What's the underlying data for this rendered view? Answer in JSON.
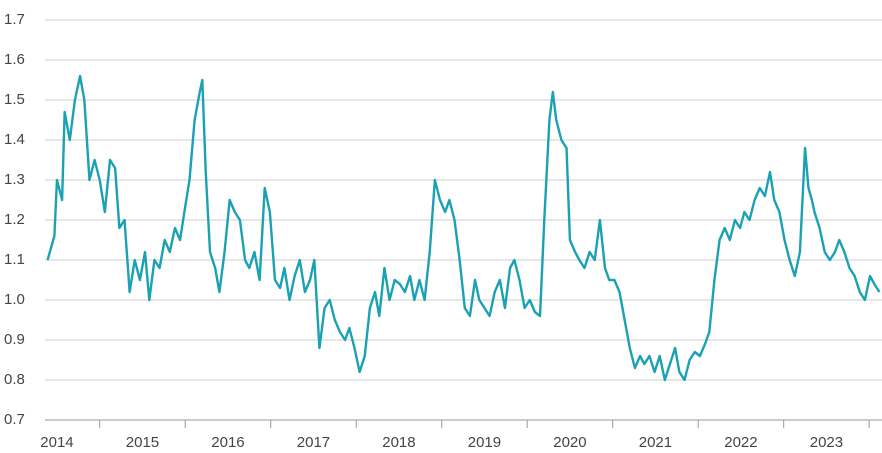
{
  "chart_data": {
    "type": "line",
    "x": [
      2014.39,
      2014.47,
      2014.5,
      2014.56,
      2014.59,
      2014.65,
      2014.71,
      2014.77,
      2014.82,
      2014.88,
      2014.94,
      2015.0,
      2015.06,
      2015.12,
      2015.18,
      2015.23,
      2015.29,
      2015.35,
      2015.41,
      2015.47,
      2015.53,
      2015.58,
      2015.64,
      2015.7,
      2015.76,
      2015.82,
      2015.88,
      2015.94,
      2015.99,
      2016.05,
      2016.11,
      2016.17,
      2016.2,
      2016.24,
      2016.29,
      2016.35,
      2016.4,
      2016.46,
      2016.52,
      2016.58,
      2016.64,
      2016.7,
      2016.75,
      2016.81,
      2016.87,
      2016.93,
      2016.99,
      2017.05,
      2017.11,
      2017.16,
      2017.22,
      2017.28,
      2017.34,
      2017.4,
      2017.46,
      2017.51,
      2017.57,
      2017.63,
      2017.69,
      2017.75,
      2017.81,
      2017.87,
      2017.92,
      2017.98,
      2018.04,
      2018.1,
      2018.16,
      2018.22,
      2018.27,
      2018.33,
      2018.39,
      2018.45,
      2018.51,
      2018.57,
      2018.63,
      2018.68,
      2018.74,
      2018.8,
      2018.86,
      2018.92,
      2018.98,
      2019.04,
      2019.09,
      2019.15,
      2019.21,
      2019.27,
      2019.33,
      2019.39,
      2019.44,
      2019.5,
      2019.56,
      2019.62,
      2019.68,
      2019.74,
      2019.8,
      2019.85,
      2019.91,
      2019.97,
      2020.03,
      2020.09,
      2020.15,
      2020.2,
      2020.26,
      2020.3,
      2020.34,
      2020.4,
      2020.46,
      2020.5,
      2020.56,
      2020.61,
      2020.67,
      2020.73,
      2020.79,
      2020.85,
      2020.91,
      2020.96,
      2021.02,
      2021.08,
      2021.14,
      2021.2,
      2021.26,
      2021.32,
      2021.37,
      2021.43,
      2021.49,
      2021.55,
      2021.61,
      2021.67,
      2021.73,
      2021.78,
      2021.84,
      2021.9,
      2021.96,
      2022.02,
      2022.08,
      2022.13,
      2022.19,
      2022.25,
      2022.31,
      2022.37,
      2022.43,
      2022.49,
      2022.54,
      2022.6,
      2022.66,
      2022.72,
      2022.78,
      2022.84,
      2022.89,
      2022.95,
      2023.01,
      2023.07,
      2023.13,
      2023.19,
      2023.25,
      2023.29,
      2023.33,
      2023.36,
      2023.42,
      2023.48,
      2023.54,
      2023.6,
      2023.65,
      2023.71,
      2023.77,
      2023.83,
      2023.89,
      2023.95,
      2024.01,
      2024.06,
      2024.12
    ],
    "series": [
      {
        "color": "#1ba1b4",
        "values": [
          1.1,
          1.16,
          1.3,
          1.25,
          1.47,
          1.4,
          1.5,
          1.56,
          1.5,
          1.3,
          1.35,
          1.3,
          1.22,
          1.35,
          1.33,
          1.18,
          1.2,
          1.02,
          1.1,
          1.05,
          1.12,
          1.0,
          1.1,
          1.08,
          1.15,
          1.12,
          1.18,
          1.15,
          1.22,
          1.3,
          1.45,
          1.52,
          1.55,
          1.32,
          1.12,
          1.08,
          1.02,
          1.12,
          1.25,
          1.22,
          1.2,
          1.1,
          1.08,
          1.12,
          1.05,
          1.28,
          1.22,
          1.05,
          1.03,
          1.08,
          1.0,
          1.06,
          1.1,
          1.02,
          1.05,
          1.1,
          0.88,
          0.98,
          1.0,
          0.95,
          0.92,
          0.9,
          0.93,
          0.88,
          0.82,
          0.86,
          0.98,
          1.02,
          0.96,
          1.08,
          1.0,
          1.05,
          1.04,
          1.02,
          1.06,
          1.0,
          1.05,
          1.0,
          1.12,
          1.3,
          1.25,
          1.22,
          1.25,
          1.2,
          1.1,
          0.98,
          0.96,
          1.05,
          1.0,
          0.98,
          0.96,
          1.02,
          1.05,
          0.98,
          1.08,
          1.1,
          1.05,
          0.98,
          1.0,
          0.97,
          0.96,
          1.2,
          1.45,
          1.52,
          1.45,
          1.4,
          1.38,
          1.15,
          1.12,
          1.1,
          1.08,
          1.12,
          1.1,
          1.2,
          1.08,
          1.05,
          1.05,
          1.02,
          0.95,
          0.88,
          0.83,
          0.86,
          0.84,
          0.86,
          0.82,
          0.86,
          0.8,
          0.84,
          0.88,
          0.82,
          0.8,
          0.85,
          0.87,
          0.86,
          0.89,
          0.92,
          1.05,
          1.15,
          1.18,
          1.15,
          1.2,
          1.18,
          1.22,
          1.2,
          1.25,
          1.28,
          1.26,
          1.32,
          1.25,
          1.22,
          1.15,
          1.1,
          1.06,
          1.12,
          1.38,
          1.28,
          1.25,
          1.22,
          1.18,
          1.12,
          1.1,
          1.12,
          1.15,
          1.12,
          1.08,
          1.06,
          1.02,
          1.0,
          1.06,
          1.04,
          1.02
        ]
      }
    ],
    "xlim": [
      2014.36,
      2024.15
    ],
    "xticks": [
      {
        "value": 2014.5,
        "label": "2014"
      },
      {
        "value": 2015.5,
        "label": "2015"
      },
      {
        "value": 2016.5,
        "label": "2016"
      },
      {
        "value": 2017.5,
        "label": "2017"
      },
      {
        "value": 2018.5,
        "label": "2018"
      },
      {
        "value": 2019.5,
        "label": "2019"
      },
      {
        "value": 2020.5,
        "label": "2020"
      },
      {
        "value": 2021.5,
        "label": "2021"
      },
      {
        "value": 2022.5,
        "label": "2022"
      },
      {
        "value": 2023.5,
        "label": "2023"
      }
    ],
    "ylim": [
      0.7,
      1.7
    ],
    "yticks": [
      0.7,
      0.8,
      0.9,
      {
        "value": 1,
        "label": "1.0"
      },
      1.1,
      1.2,
      1.3,
      1.4,
      1.5,
      1.6,
      1.7
    ],
    "grid": true
  }
}
